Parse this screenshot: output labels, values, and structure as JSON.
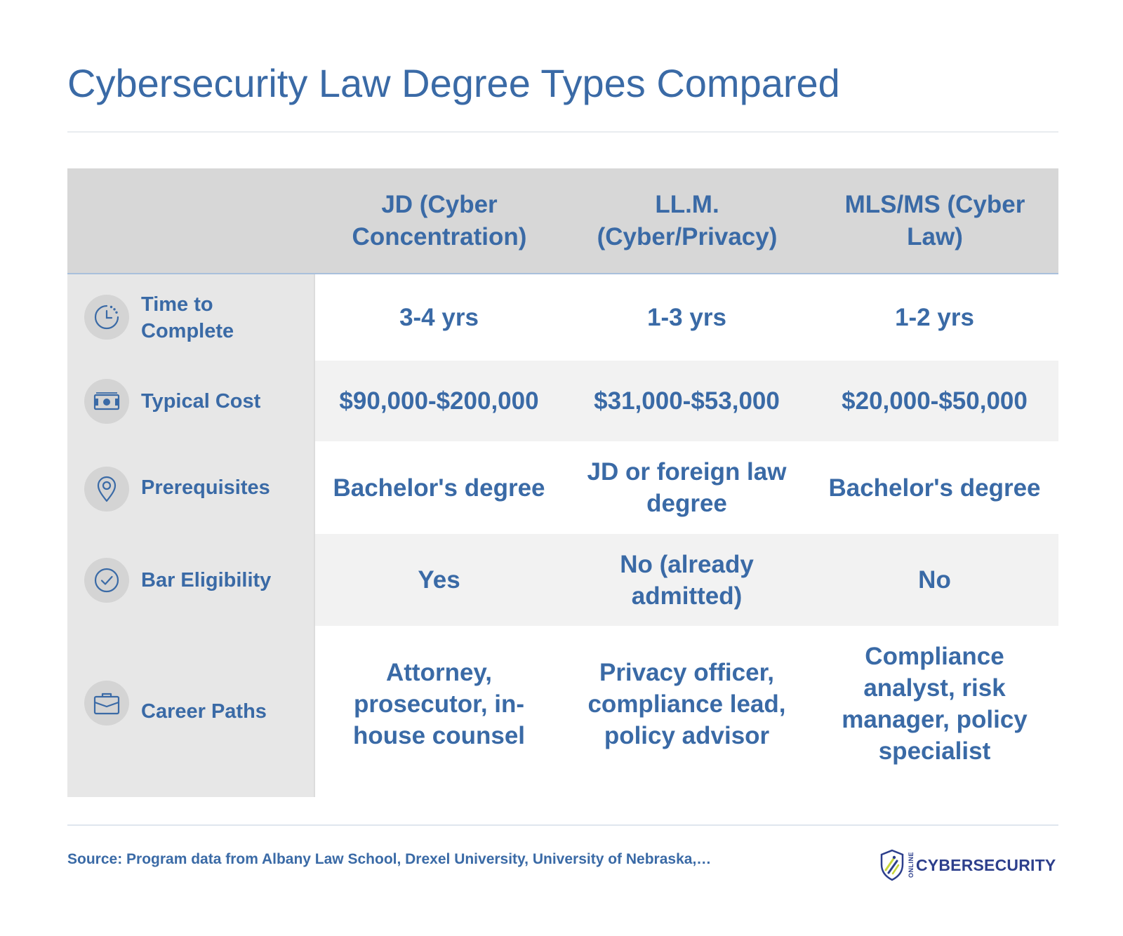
{
  "title": "Cybersecurity Law Degree Types Compared",
  "columns": [
    "JD (Cyber Concentration)",
    "LL.M. (Cyber/Privacy)",
    "MLS/MS (Cyber Law)"
  ],
  "rows": [
    {
      "label": "Time to Complete",
      "icon": "clock-icon",
      "values": [
        "3-4 yrs",
        "1-3 yrs",
        "1-2 yrs"
      ]
    },
    {
      "label": "Typical Cost",
      "icon": "money-icon",
      "values": [
        "$90,000-$200,000",
        "$31,000-$53,000",
        "$20,000-$50,000"
      ]
    },
    {
      "label": "Prerequisites",
      "icon": "location-pin-icon",
      "values": [
        "Bachelor's degree",
        "JD or foreign law degree",
        "Bachelor's degree"
      ]
    },
    {
      "label": "Bar Eligibility",
      "icon": "check-circle-icon",
      "values": [
        "Yes",
        "No (already admitted)",
        "No"
      ]
    },
    {
      "label": "Career Paths",
      "icon": "briefcase-icon",
      "values": [
        "Attorney, prosecutor, in-house counsel",
        "Privacy officer, compliance lead, policy advisor",
        "Compliance analyst, risk manager, policy specialist"
      ]
    }
  ],
  "source": "Source: Program data from Albany Law School, Drexel University, University of Nebraska,…",
  "logo": {
    "small": "ONLINE",
    "main": "CYBERSECURITY"
  },
  "colors": {
    "accent": "#3a6aa6",
    "header_bg": "#d7d7d7",
    "side_bg": "#e7e7e7",
    "alt_row": "#f2f2f2",
    "logo": "#2d3f8c",
    "logo_accent": "#c9d63a"
  }
}
